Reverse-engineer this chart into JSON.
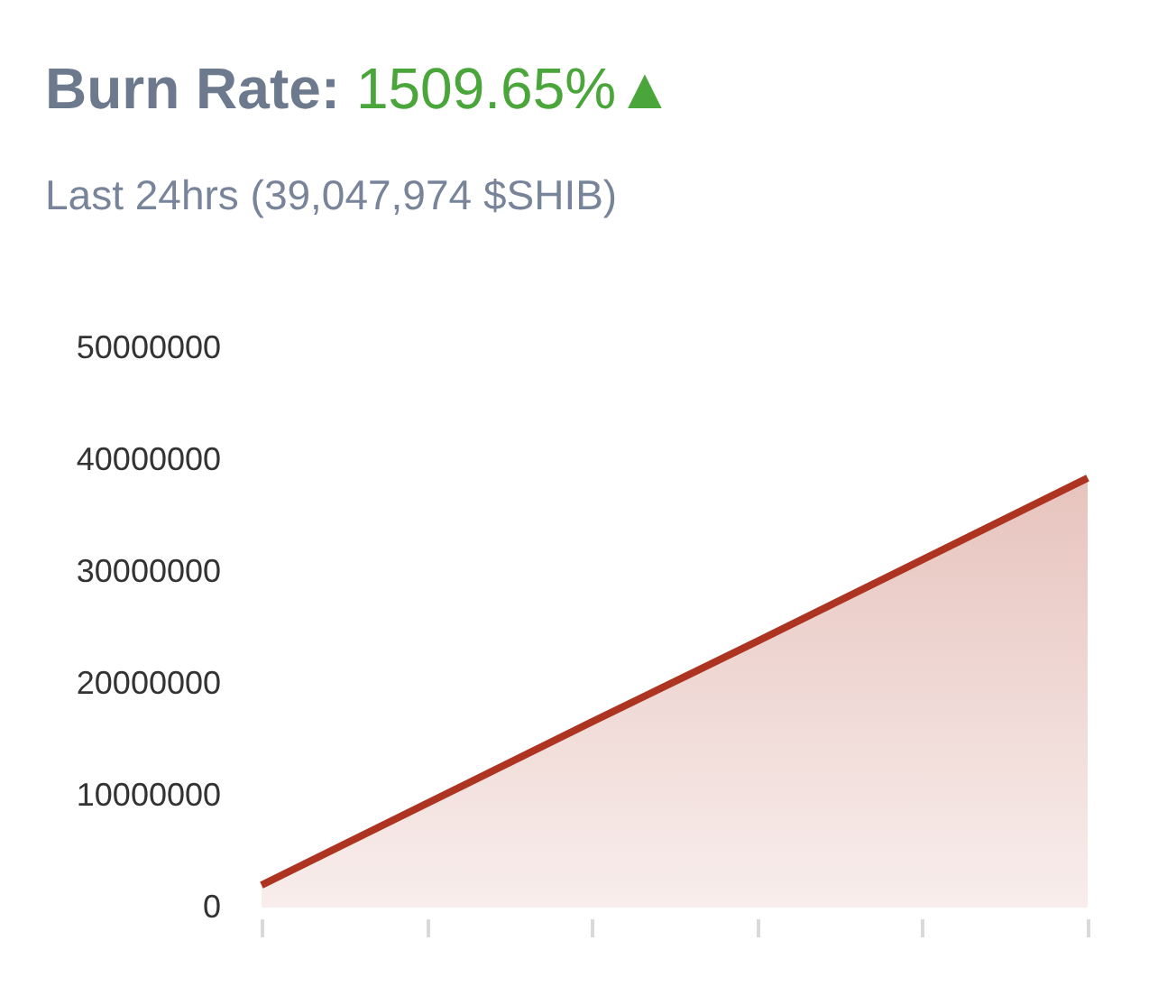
{
  "chart_data": {
    "type": "area",
    "title": "Burn Rate: 1509.65%▲",
    "subtitle": "Last 24hrs (39,047,974 $SHIB)",
    "categories": [
      null,
      null,
      null,
      null,
      null,
      null
    ],
    "series": [
      {
        "color": "#ad3421",
        "values": [
          2000000,
          9300000,
          16600000,
          23800000,
          31100000,
          38400000
        ]
      }
    ],
    "ylim": [
      0,
      50000000
    ],
    "yticks": [
      0,
      10000000,
      20000000,
      30000000,
      40000000,
      50000000
    ],
    "grid": false,
    "tick_labels": "y"
  }
}
